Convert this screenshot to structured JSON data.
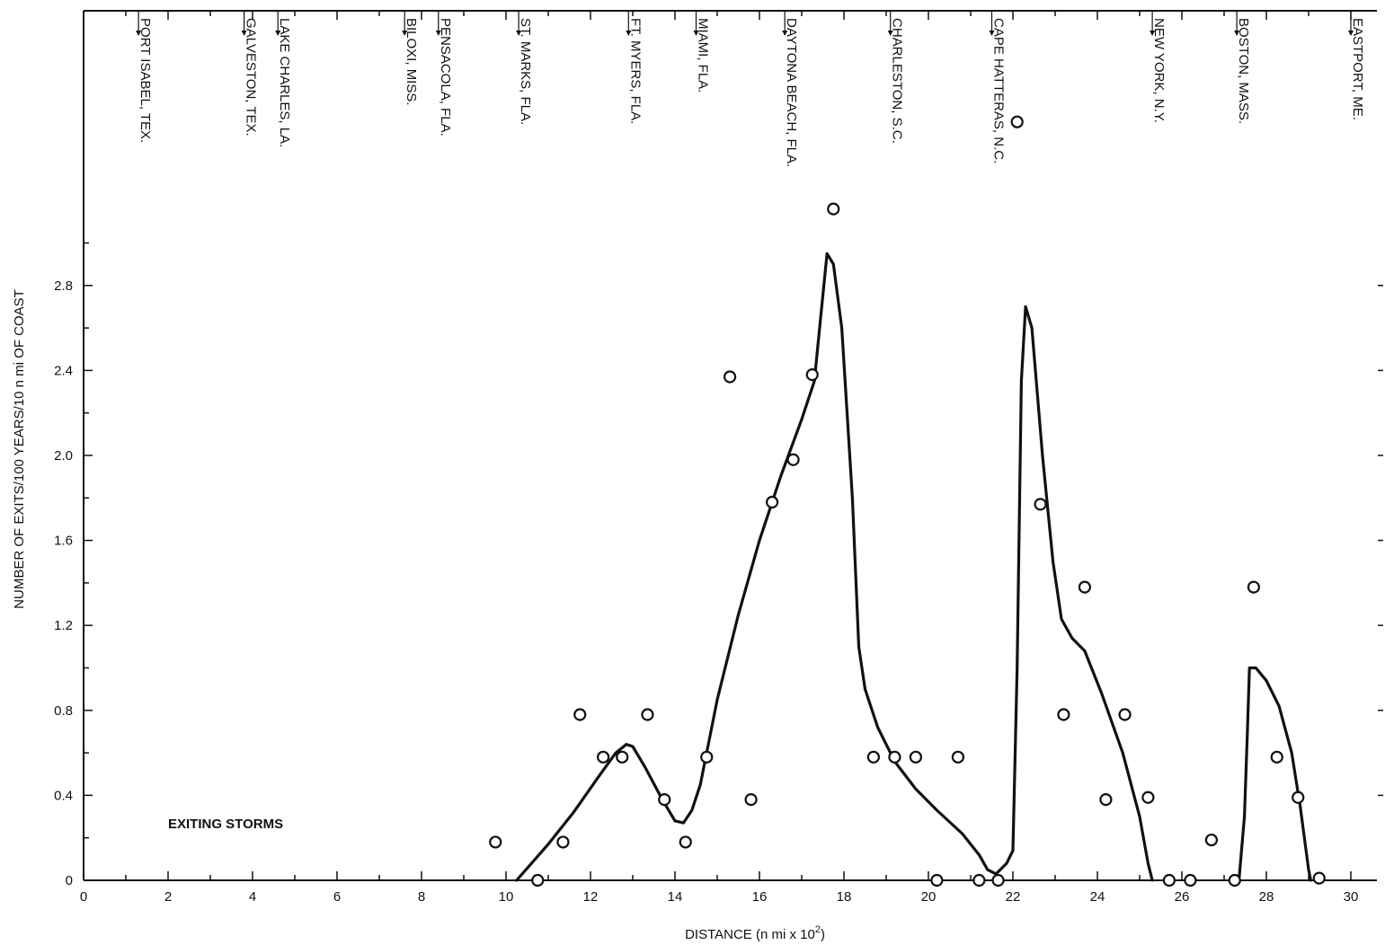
{
  "chart_data": {
    "type": "scatter",
    "title": "",
    "xlabel": "DISTANCE (n mi x 10",
    "xlabel_sup": "2",
    "xlabel_close": ")",
    "ylabel": "NUMBER OF EXITS/100 YEARS/10 n mi OF COAST",
    "annotation": "EXITING STORMS",
    "xlim": [
      0,
      30.5
    ],
    "ylim": [
      0,
      4.2
    ],
    "x_ticks": [
      0,
      2,
      4,
      6,
      8,
      10,
      12,
      14,
      16,
      18,
      20,
      22,
      24,
      26,
      28,
      30
    ],
    "x_tick_labels": [
      "0",
      "2",
      "4",
      "6",
      "8",
      "10",
      "12",
      "14",
      "16",
      "18",
      "20",
      "22",
      "24",
      "26",
      "28",
      "30"
    ],
    "y_ticks": [
      0,
      0.4,
      0.8,
      1.2,
      1.6,
      2.0,
      2.4,
      2.8
    ],
    "y_tick_labels": [
      "0",
      "0.4",
      "0.8",
      "1.2",
      "1.6",
      "2.0",
      "2.4",
      "2.8"
    ],
    "grid": false,
    "locations": [
      {
        "x": 1.3,
        "label": "PORT ISABEL, TEX."
      },
      {
        "x": 3.8,
        "label": "GALVESTON, TEX."
      },
      {
        "x": 4.6,
        "label": "LAKE CHARLES, LA."
      },
      {
        "x": 7.6,
        "label": "BILOXI, MISS."
      },
      {
        "x": 8.4,
        "label": "PENSACOLA, FLA."
      },
      {
        "x": 10.3,
        "label": "ST. MARKS, FLA."
      },
      {
        "x": 12.9,
        "label": "FT. MYERS, FLA."
      },
      {
        "x": 14.5,
        "label": "MIAMI, FLA."
      },
      {
        "x": 16.6,
        "label": "DAYTONA BEACH, FLA."
      },
      {
        "x": 19.1,
        "label": "CHARLESTON, S.C."
      },
      {
        "x": 21.5,
        "label": "CAPE HATTERAS, N.C."
      },
      {
        "x": 25.3,
        "label": "NEW YORK, N.Y."
      },
      {
        "x": 27.3,
        "label": "BOSTON, MASS."
      },
      {
        "x": 30.0,
        "label": "EASTPORT, ME."
      }
    ],
    "points": [
      {
        "x": 9.75,
        "y": 0.18
      },
      {
        "x": 10.75,
        "y": 0.0
      },
      {
        "x": 11.35,
        "y": 0.18
      },
      {
        "x": 11.75,
        "y": 0.78
      },
      {
        "x": 12.3,
        "y": 0.58
      },
      {
        "x": 12.75,
        "y": 0.58
      },
      {
        "x": 13.35,
        "y": 0.78
      },
      {
        "x": 13.75,
        "y": 0.38
      },
      {
        "x": 14.25,
        "y": 0.18
      },
      {
        "x": 14.75,
        "y": 0.58
      },
      {
        "x": 15.3,
        "y": 2.37
      },
      {
        "x": 15.8,
        "y": 0.38
      },
      {
        "x": 16.3,
        "y": 1.78
      },
      {
        "x": 16.8,
        "y": 1.98
      },
      {
        "x": 17.25,
        "y": 2.38
      },
      {
        "x": 17.75,
        "y": 3.16
      },
      {
        "x": 18.7,
        "y": 0.58
      },
      {
        "x": 19.2,
        "y": 0.58
      },
      {
        "x": 19.7,
        "y": 0.58
      },
      {
        "x": 20.2,
        "y": 0.0
      },
      {
        "x": 20.7,
        "y": 0.58
      },
      {
        "x": 21.2,
        "y": 0.0
      },
      {
        "x": 21.65,
        "y": 0.0
      },
      {
        "x": 22.1,
        "y": 3.57
      },
      {
        "x": 22.65,
        "y": 1.77
      },
      {
        "x": 23.2,
        "y": 0.78
      },
      {
        "x": 23.7,
        "y": 1.38
      },
      {
        "x": 24.2,
        "y": 0.38
      },
      {
        "x": 24.65,
        "y": 0.78
      },
      {
        "x": 25.2,
        "y": 0.39
      },
      {
        "x": 25.7,
        "y": 0.0
      },
      {
        "x": 26.2,
        "y": 0.0
      },
      {
        "x": 26.7,
        "y": 0.19
      },
      {
        "x": 27.25,
        "y": 0.0
      },
      {
        "x": 27.7,
        "y": 1.38
      },
      {
        "x": 28.25,
        "y": 0.58
      },
      {
        "x": 28.75,
        "y": 0.39
      },
      {
        "x": 29.25,
        "y": 0.01
      }
    ],
    "curves": [
      [
        [
          10.25,
          0.0
        ],
        [
          11.0,
          0.17
        ],
        [
          11.6,
          0.32
        ],
        [
          12.2,
          0.49
        ],
        [
          12.6,
          0.6
        ],
        [
          12.85,
          0.64
        ],
        [
          13.0,
          0.63
        ],
        [
          13.3,
          0.53
        ],
        [
          13.7,
          0.38
        ],
        [
          14.0,
          0.28
        ],
        [
          14.2,
          0.27
        ],
        [
          14.4,
          0.33
        ],
        [
          14.6,
          0.45
        ],
        [
          15.0,
          0.85
        ],
        [
          15.5,
          1.25
        ],
        [
          16.0,
          1.6
        ],
        [
          16.5,
          1.9
        ],
        [
          17.0,
          2.17
        ],
        [
          17.3,
          2.35
        ],
        [
          17.45,
          2.65
        ],
        [
          17.6,
          2.95
        ],
        [
          17.75,
          2.9
        ],
        [
          17.95,
          2.6
        ],
        [
          18.2,
          1.8
        ],
        [
          18.35,
          1.1
        ],
        [
          18.5,
          0.9
        ],
        [
          18.8,
          0.72
        ],
        [
          19.2,
          0.56
        ],
        [
          19.7,
          0.43
        ],
        [
          20.2,
          0.33
        ],
        [
          20.8,
          0.22
        ],
        [
          21.2,
          0.12
        ],
        [
          21.4,
          0.05
        ],
        [
          21.6,
          0.03
        ],
        [
          21.85,
          0.08
        ],
        [
          22.0,
          0.14
        ],
        [
          22.1,
          1.0
        ],
        [
          22.2,
          2.35
        ],
        [
          22.3,
          2.7
        ],
        [
          22.45,
          2.6
        ],
        [
          22.7,
          2.0
        ],
        [
          22.95,
          1.5
        ],
        [
          23.15,
          1.23
        ],
        [
          23.4,
          1.14
        ],
        [
          23.7,
          1.08
        ],
        [
          24.1,
          0.88
        ],
        [
          24.6,
          0.6
        ],
        [
          25.0,
          0.3
        ],
        [
          25.2,
          0.08
        ],
        [
          25.3,
          0.0
        ]
      ],
      [
        [
          27.35,
          0.0
        ],
        [
          27.48,
          0.3
        ],
        [
          27.55,
          0.7
        ],
        [
          27.6,
          1.0
        ],
        [
          27.75,
          1.0
        ],
        [
          28.0,
          0.94
        ],
        [
          28.3,
          0.82
        ],
        [
          28.6,
          0.6
        ],
        [
          28.8,
          0.35
        ],
        [
          29.0,
          0.05
        ],
        [
          29.05,
          0.0
        ]
      ]
    ]
  }
}
